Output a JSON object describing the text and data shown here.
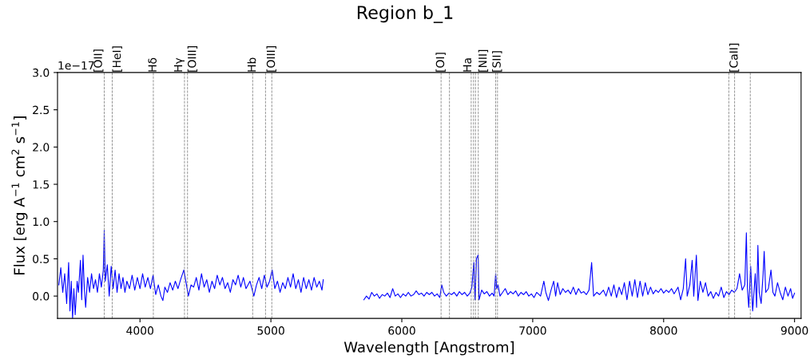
{
  "chart_data": {
    "type": "line",
    "title": "Region b_1",
    "xlabel": "Wavelength [Angstrom]",
    "ylabel": "Flux [erg A$^{−1}$ cm$^{2}$ s$^{−1}$]",
    "annotations": [
      "1e−17"
    ],
    "xlim": [
      3370,
      9050
    ],
    "ylim": [
      -0.3,
      3.0
    ],
    "xticks": [
      4000,
      5000,
      6000,
      7000,
      8000,
      9000
    ],
    "yticks": [
      {
        "value": 0,
        "label": "0.0"
      },
      {
        "value": 0.5,
        "label": "0.5"
      },
      {
        "value": 1,
        "label": "1.0"
      },
      {
        "value": 1.5,
        "label": "1.5"
      },
      {
        "value": 2,
        "label": "2.0"
      },
      {
        "value": 2.5,
        "label": "2.5"
      },
      {
        "value": 3,
        "label": "3.0"
      }
    ],
    "grid": false,
    "legend": false,
    "marker": "none",
    "line_style": "solid",
    "ref_lines": [
      {
        "axis": "x",
        "value": 3727,
        "label": "[OII]",
        "color": "#808080",
        "line_style": "dashed"
      },
      {
        "axis": "x",
        "value": 3788,
        "label": "[HeI]",
        "color": "#808080",
        "line_style": "dashed"
      },
      {
        "axis": "x",
        "value": 4102,
        "label": "Hδ",
        "color": "#808080",
        "line_style": "dashed"
      },
      {
        "axis": "x",
        "value": 4340,
        "label": "Hγ",
        "color": "#808080",
        "line_style": "dashed"
      },
      {
        "axis": "x",
        "value": 4363,
        "label": "[OIII]",
        "color": "#808080",
        "line_style": "dashed"
      },
      {
        "axis": "x",
        "value": 4861,
        "label": "Hb",
        "color": "#808080",
        "line_style": "dashed"
      },
      {
        "axis": "x",
        "value": 4959,
        "label": null,
        "color": "#808080",
        "line_style": "dashed"
      },
      {
        "axis": "x",
        "value": 5007,
        "label": "[OIII]",
        "color": "#808080",
        "line_style": "dashed"
      },
      {
        "axis": "x",
        "value": 6300,
        "label": "[OI]",
        "color": "#808080",
        "line_style": "dashed"
      },
      {
        "axis": "x",
        "value": 6364,
        "label": null,
        "color": "#808080",
        "line_style": "dashed"
      },
      {
        "axis": "x",
        "value": 6530,
        "label": null,
        "color": "#808080",
        "line_style": "dashed"
      },
      {
        "axis": "x",
        "value": 6548,
        "label": "Ha",
        "color": "#808080",
        "line_style": "dashed"
      },
      {
        "axis": "x",
        "value": 6563,
        "label": null,
        "color": "#808080",
        "line_style": "dashed"
      },
      {
        "axis": "x",
        "value": 6584,
        "label": "[NII]",
        "color": "#808080",
        "line_style": "dashed"
      },
      {
        "axis": "x",
        "value": 6717,
        "label": null,
        "color": "#808080",
        "line_style": "dashed"
      },
      {
        "axis": "x",
        "value": 6731,
        "label": "[SII]",
        "color": "#808080",
        "line_style": "dashed"
      },
      {
        "axis": "x",
        "value": 8498,
        "label": null,
        "color": "#808080",
        "line_style": "dashed"
      },
      {
        "axis": "x",
        "value": 8542,
        "label": "[CaII]",
        "color": "#808080",
        "line_style": "dashed"
      },
      {
        "axis": "x",
        "value": 8662,
        "label": null,
        "color": "#808080",
        "line_style": "dashed"
      }
    ],
    "series": [
      {
        "color": "#0000ff",
        "x": [
          3380,
          3395,
          3410,
          3425,
          3440,
          3455,
          3465,
          3475,
          3485,
          3495,
          3505,
          3520,
          3530,
          3545,
          3555,
          3565,
          3575,
          3585,
          3600,
          3615,
          3630,
          3645,
          3660,
          3675,
          3690,
          3705,
          3720,
          3727,
          3735,
          3750,
          3765,
          3780,
          3795,
          3810,
          3825,
          3840,
          3855,
          3870,
          3885,
          3900,
          3920,
          3940,
          3960,
          3980,
          4000,
          4020,
          4040,
          4060,
          4080,
          4100,
          4120,
          4140,
          4160,
          4175,
          4190,
          4210,
          4230,
          4250,
          4270,
          4290,
          4310,
          4335,
          4350,
          4370,
          4390,
          4410,
          4430,
          4450,
          4470,
          4490,
          4510,
          4530,
          4550,
          4570,
          4590,
          4610,
          4630,
          4650,
          4670,
          4690,
          4710,
          4730,
          4750,
          4770,
          4790,
          4810,
          4840,
          4870,
          4890,
          4910,
          4930,
          4950,
          4970,
          4990,
          5010,
          5030,
          5050,
          5070,
          5090,
          5110,
          5130,
          5150,
          5170,
          5190,
          5210,
          5230,
          5250,
          5270,
          5290,
          5310,
          5330,
          5350,
          5370,
          5390,
          5400,
          5550,
          5710,
          5730,
          5750,
          5770,
          5790,
          5810,
          5830,
          5850,
          5870,
          5890,
          5910,
          5930,
          5950,
          5970,
          5990,
          6010,
          6030,
          6050,
          6070,
          6090,
          6110,
          6130,
          6150,
          6170,
          6190,
          6210,
          6230,
          6250,
          6270,
          6290,
          6305,
          6320,
          6340,
          6360,
          6380,
          6400,
          6420,
          6440,
          6460,
          6480,
          6500,
          6520,
          6535,
          6550,
          6560,
          6570,
          6583,
          6590,
          6610,
          6630,
          6650,
          6670,
          6690,
          6705,
          6717,
          6725,
          6735,
          6750,
          6770,
          6790,
          6810,
          6830,
          6850,
          6870,
          6890,
          6910,
          6930,
          6950,
          6970,
          6990,
          7010,
          7030,
          7060,
          7085,
          7100,
          7120,
          7140,
          7160,
          7175,
          7190,
          7210,
          7230,
          7250,
          7270,
          7290,
          7310,
          7330,
          7350,
          7370,
          7390,
          7410,
          7430,
          7450,
          7465,
          7490,
          7510,
          7540,
          7560,
          7580,
          7600,
          7620,
          7640,
          7660,
          7680,
          7700,
          7720,
          7740,
          7760,
          7780,
          7800,
          7820,
          7840,
          7860,
          7880,
          7900,
          7920,
          7940,
          7960,
          7980,
          8000,
          8020,
          8040,
          8060,
          8080,
          8110,
          8130,
          8150,
          8168,
          8180,
          8200,
          8218,
          8230,
          8250,
          8262,
          8280,
          8300,
          8320,
          8340,
          8360,
          8380,
          8400,
          8420,
          8440,
          8460,
          8480,
          8500,
          8520,
          8540,
          8560,
          8580,
          8600,
          8620,
          8632,
          8640,
          8650,
          8665,
          8680,
          8700,
          8710,
          8720,
          8730,
          8745,
          8760,
          8768,
          8780,
          8800,
          8820,
          8835,
          8850,
          8870,
          8890,
          8910,
          8930,
          8950,
          8970,
          8985,
          9000
        ],
        "values": [
          0.15,
          0.38,
          0.05,
          0.3,
          -0.1,
          0.45,
          -0.2,
          0.2,
          -0.3,
          0.1,
          -0.25,
          0.2,
          0.05,
          0.48,
          -0.05,
          0.55,
          0.1,
          -0.15,
          0.25,
          0.05,
          0.3,
          0.1,
          0.22,
          0.05,
          0.3,
          0.12,
          0.35,
          0.88,
          0.2,
          0.42,
          0.0,
          0.4,
          0.1,
          0.35,
          0.05,
          0.3,
          0.1,
          0.25,
          0.05,
          0.2,
          0.1,
          0.28,
          0.08,
          0.25,
          0.1,
          0.3,
          0.12,
          0.25,
          0.1,
          0.28,
          0.02,
          0.15,
          0.0,
          -0.06,
          0.12,
          0.05,
          0.18,
          0.08,
          0.2,
          0.1,
          0.22,
          0.35,
          0.2,
          0.0,
          0.15,
          0.12,
          0.25,
          0.08,
          0.3,
          0.12,
          0.22,
          0.05,
          0.2,
          0.1,
          0.28,
          0.15,
          0.25,
          0.1,
          0.18,
          0.05,
          0.22,
          0.15,
          0.28,
          0.12,
          0.25,
          0.1,
          0.2,
          0.0,
          0.15,
          0.25,
          0.1,
          0.28,
          0.12,
          0.2,
          0.35,
          0.1,
          0.2,
          0.05,
          0.18,
          0.1,
          0.25,
          0.12,
          0.3,
          0.1,
          0.22,
          0.05,
          0.25,
          0.1,
          0.22,
          0.08,
          0.25,
          0.12,
          0.2,
          0.08,
          0.22,
          null,
          -0.05,
          0.0,
          -0.04,
          0.05,
          0.0,
          0.03,
          -0.03,
          0.02,
          0.0,
          0.04,
          -0.02,
          0.1,
          0.0,
          0.03,
          -0.02,
          0.03,
          0.0,
          0.05,
          0.0,
          0.02,
          0.07,
          0.02,
          0.04,
          0.0,
          0.05,
          0.02,
          0.05,
          0.0,
          0.03,
          -0.02,
          0.15,
          0.05,
          0.0,
          0.04,
          0.02,
          0.05,
          0.0,
          0.06,
          0.02,
          0.05,
          0.0,
          0.04,
          0.12,
          0.45,
          -0.05,
          0.5,
          0.55,
          -0.05,
          0.08,
          0.03,
          0.06,
          0.0,
          0.04,
          0.0,
          0.3,
          0.1,
          0.15,
          0.0,
          0.05,
          0.1,
          0.02,
          0.06,
          0.03,
          0.07,
          0.0,
          0.05,
          0.02,
          0.06,
          0.0,
          0.03,
          -0.02,
          0.05,
          0.0,
          0.2,
          0.05,
          -0.06,
          0.08,
          0.2,
          0.0,
          0.18,
          0.02,
          0.1,
          0.05,
          0.08,
          0.03,
          0.12,
          0.02,
          0.1,
          0.04,
          0.06,
          0.02,
          0.08,
          0.45,
          0.0,
          0.05,
          0.02,
          0.08,
          0.0,
          0.12,
          0.0,
          0.15,
          -0.02,
          0.12,
          0.02,
          0.18,
          -0.05,
          0.2,
          0.0,
          0.22,
          -0.02,
          0.2,
          0.0,
          0.18,
          0.02,
          0.12,
          0.03,
          0.08,
          0.05,
          0.1,
          0.04,
          0.08,
          0.05,
          0.1,
          0.03,
          0.12,
          -0.05,
          0.1,
          0.5,
          0.0,
          0.15,
          0.48,
          0.0,
          0.55,
          -0.06,
          0.2,
          0.05,
          0.18,
          0.0,
          0.06,
          -0.03,
          0.05,
          0.0,
          0.12,
          -0.02,
          0.06,
          0.02,
          0.08,
          0.05,
          0.1,
          0.3,
          0.08,
          0.15,
          0.85,
          0.1,
          -0.15,
          0.4,
          -0.2,
          0.3,
          -0.15,
          0.68,
          0.05,
          -0.1,
          0.3,
          0.6,
          0.05,
          0.1,
          0.35,
          0.05,
          0.0,
          0.18,
          0.05,
          -0.05,
          0.12,
          0.0,
          0.1,
          -0.03,
          0.04
        ]
      }
    ]
  }
}
